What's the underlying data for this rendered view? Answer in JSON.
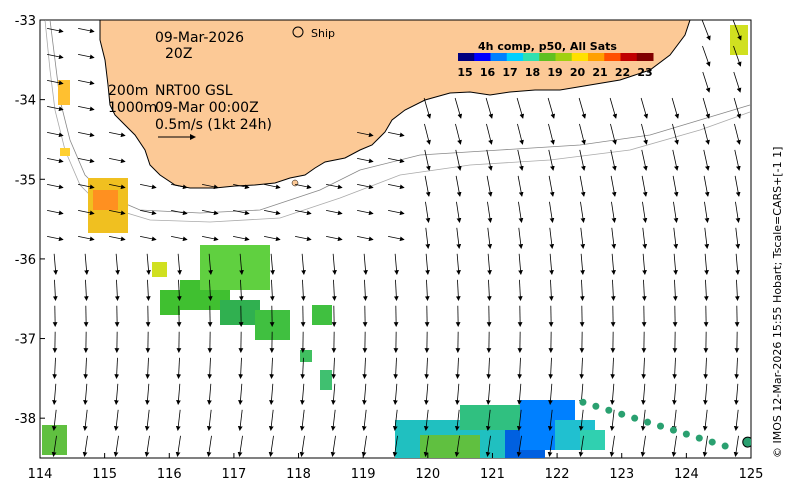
{
  "map": {
    "date": "09-Mar-2026",
    "hour": "20Z",
    "ship_label": "Ship",
    "depth_200": "200m",
    "depth_1000": "1000m",
    "current_model": "NRT00 GSL",
    "current_time": "09-Mar 00:00Z",
    "scale_label": "0.5m/s (1kt 24h)",
    "credit": "© IMOS 12-Mar-2026 15:55 Hobart; Tscale=CARS+[-1 1]",
    "colors": {
      "land": "#fcc996",
      "ship_track": "#2aa070",
      "arrow": "#000000"
    }
  },
  "colorbar": {
    "title": "4h comp, p50, All Sats",
    "ticks": [
      "15",
      "16",
      "17",
      "18",
      "19",
      "20",
      "21",
      "22",
      "23"
    ],
    "colors": [
      "#00007f",
      "#0000ff",
      "#0080ff",
      "#00d0ff",
      "#30e0b0",
      "#60c020",
      "#a0d010",
      "#ffe000",
      "#ffa000",
      "#ff5000",
      "#c00000",
      "#800000"
    ]
  },
  "axes": {
    "x_ticks": [
      "114",
      "115",
      "116",
      "117",
      "118",
      "119",
      "120",
      "121",
      "122",
      "123",
      "124",
      "125"
    ],
    "y_ticks": [
      "-33",
      "-34",
      "-35",
      "-36",
      "-37",
      "-38"
    ]
  },
  "chart_data": {
    "type": "map",
    "lon_range": [
      114,
      125
    ],
    "lat_range": [
      -38.5,
      -33
    ],
    "ship_track": [
      [
        122.4,
        -37.8
      ],
      [
        122.6,
        -37.85
      ],
      [
        122.8,
        -37.9
      ],
      [
        123.0,
        -37.95
      ],
      [
        123.2,
        -38.0
      ],
      [
        123.4,
        -38.05
      ],
      [
        123.6,
        -38.1
      ],
      [
        123.8,
        -38.15
      ],
      [
        124.0,
        -38.2
      ],
      [
        124.2,
        -38.25
      ],
      [
        124.4,
        -38.3
      ],
      [
        124.6,
        -38.35
      ],
      [
        124.95,
        -38.3
      ]
    ]
  }
}
